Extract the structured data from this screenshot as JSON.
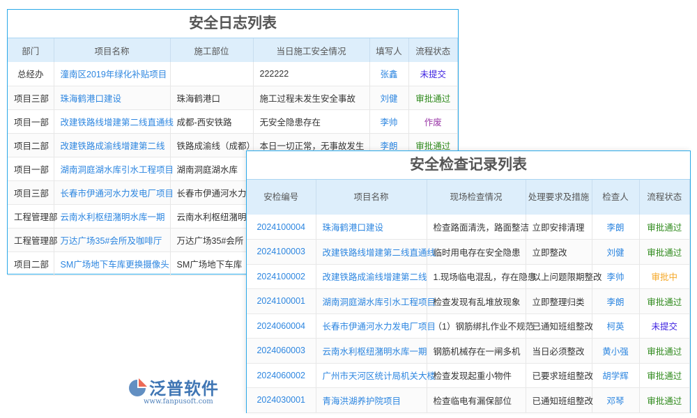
{
  "log": {
    "title": "安全日志列表",
    "columns": [
      "部门",
      "项目名称",
      "施工部位",
      "当日施工安全情况",
      "填写人",
      "流程状态"
    ],
    "rows": [
      [
        "总经办",
        "潼南区2019年绿化补贴项目",
        "",
        "222222",
        "张鑫",
        "未提交"
      ],
      [
        "项目三部",
        "珠海鹤港口建设",
        "珠海鹤港口",
        "施工过程未发生安全事故",
        "刘健",
        "审批通过"
      ],
      [
        "项目一部",
        "改建铁路线增建第二线直通线",
        "成都-西安铁路",
        "无安全隐患存在",
        "李帅",
        "作废"
      ],
      [
        "项目二部",
        "改建铁路成渝线增建第二线",
        "铁路成渝线（成都）",
        "本日一切正常，无事故发生",
        "李朗",
        "审批通过"
      ],
      [
        "项目一部",
        "湖南洞庭湖水库引水工程项目",
        "湖南洞庭湖水库",
        "",
        "",
        ""
      ],
      [
        "项目三部",
        "长春市伊通河水力发电厂项目",
        "长春市伊通河水力",
        "",
        "",
        ""
      ],
      [
        "工程管理部",
        "云南水利枢纽潴明水库一期",
        "云南水利枢纽潴明",
        "",
        "",
        ""
      ],
      [
        "工程管理部",
        "万达广场35#会所及咖啡厅",
        "万达广场35#会所",
        "",
        "",
        ""
      ],
      [
        "项目二部",
        "SM广场地下车库更换摄像头",
        "SM广场地下车库",
        "",
        "",
        ""
      ]
    ]
  },
  "check": {
    "title": "安全检查记录列表",
    "columns": [
      "安检编号",
      "项目名称",
      "现场检查情况",
      "处理要求及措施",
      "检查人",
      "流程状态"
    ],
    "rows": [
      [
        "2024100004",
        "珠海鹤港口建设",
        "检查路面清洗，路面整洁",
        "立即安排清理",
        "李朗",
        "审批通过"
      ],
      [
        "2024100003",
        "改建铁路线增建第二线直通线",
        "临时用电存在安全隐患",
        "立即整改",
        "刘健",
        "审批通过"
      ],
      [
        "2024100002",
        "改建铁路成渝线增建第二线",
        "1.现场临电混乱，存在隐患",
        "以上问题限期整改",
        "李帅",
        "审批中"
      ],
      [
        "2024100001",
        "湖南洞庭湖水库引水工程项目",
        "检查发现有乱堆放现象",
        "立即整理归类",
        "李朗",
        "审批通过"
      ],
      [
        "2024060004",
        "长春市伊通河水力发电厂项目",
        "（1）钢筋绑扎作业不规范",
        "已通知班组整改",
        "柯英",
        "未提交"
      ],
      [
        "2024060003",
        "云南水利枢纽潴明水库一期",
        "钢筋机械存在一闸多机",
        "当日必须整改",
        "黄小强",
        "审批通过"
      ],
      [
        "2024060002",
        "广州市天河区统计局机关大楼",
        "检查发现起重小物件",
        "已要求班组整改",
        "胡学辉",
        "审批通过"
      ],
      [
        "2024030001",
        "青海洪湖养护院项目",
        "检查临电有漏保部位",
        "已通知班组整改",
        "邓琴",
        "审批通过"
      ]
    ]
  },
  "status_colors": {
    "未提交": "#3b1fe0",
    "审批通过": "#2f8a1c",
    "作废": "#9b3aa8",
    "审批中": "#f5a623"
  },
  "watermark": {
    "brand": "泛普软件",
    "url": "www.fanpusoft.com"
  }
}
